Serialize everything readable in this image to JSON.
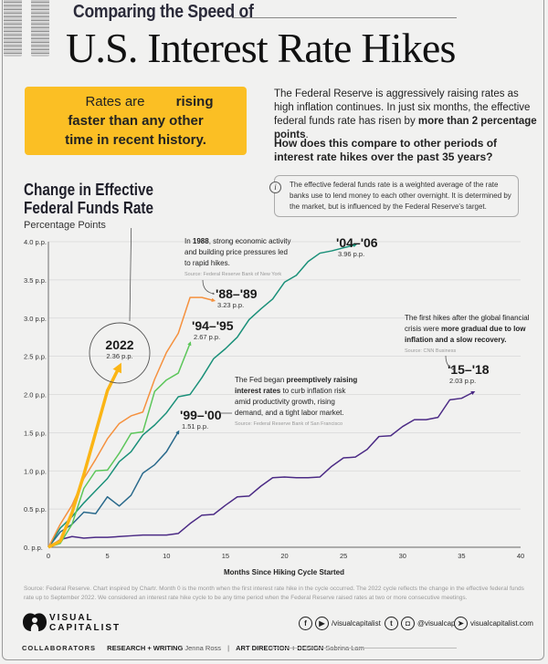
{
  "header": {
    "kicker": "Comparing the Speed of",
    "title": "U.S. Interest Rate Hikes"
  },
  "callout": {
    "text_plain": "Rates are ",
    "text_bold": "rising faster than any other time in recent history."
  },
  "intro": {
    "text_plain": "The Federal Reserve is aggressively raising rates as high inflation continues. In just six months, the effective federal funds rate has risen by ",
    "text_bold": "more than 2 percentage points",
    "text_end": ".",
    "question": "How does this compare to other periods of interest rate hikes over the past 35 years?"
  },
  "info": {
    "icon": "info-icon",
    "text": "The effective federal funds rate is a weighted average of the rate banks use to lend money to each other overnight. It is determined by the market, but is influenced by the Federal Reserve's target."
  },
  "chart_title": {
    "line1": "Change in Effective",
    "line2": "Federal Funds Rate",
    "unit": "Percentage Points"
  },
  "annotations": {
    "a1988": {
      "pre": "In ",
      "bold": "1988",
      "post1": ", strong economic activity",
      "line2": "and building price pressures led",
      "line3": "to rapid hikes.",
      "source": "Source: Federal Reserve Bank of New York"
    },
    "a1999": {
      "pre": "The Fed began ",
      "bold1": "preemptively raising",
      "bold2": "interest rates",
      "post2": " to curb inflation risk",
      "line3": "amid productivity growth, rising",
      "line4": "demand, and a tight labor market.",
      "source": "Source: Federal Reserve Bank of San Francisco"
    },
    "a2015": {
      "line1": "The first hikes after the global financial",
      "pre2": "crisis were ",
      "bold2": "more gradual due to low",
      "bold3": "inflation and a slow recovery.",
      "source": "Source: CNN Business"
    }
  },
  "chart_data": {
    "type": "line",
    "title": "Change in Effective Federal Funds Rate",
    "xlabel": "Months Since Hiking Cycle Started",
    "ylabel": "Percentage Points",
    "xlim": [
      0,
      40
    ],
    "ylim": [
      0,
      4.0
    ],
    "x_ticks": [
      "0",
      "5",
      "10",
      "15",
      "20",
      "25",
      "30",
      "35",
      "40"
    ],
    "y_ticks": [
      "0. p.p.",
      "0.5 p.p.",
      "1.0 p.p.",
      "1.5 p.p.",
      "2.0 p.p.",
      "2.5 p.p.",
      "3.0 p.p.",
      "3.5 p.p.",
      "4.0 p.p."
    ],
    "grid": true,
    "series": [
      {
        "name": "2022",
        "label": "2022",
        "final_label": "2.36 p.p.",
        "color": "#fbb515",
        "x": [
          0,
          1,
          2,
          3,
          4,
          5,
          6
        ],
        "y": [
          0,
          0.08,
          0.45,
          0.95,
          1.5,
          2.05,
          2.36
        ]
      },
      {
        "name": "'88-'89",
        "label": "'88–'89",
        "final_label": "3.23 p.p.",
        "color": "#f5913e",
        "x": [
          0,
          1,
          2,
          3,
          4,
          5,
          6,
          7,
          8,
          9,
          10,
          11,
          12,
          13,
          14
        ],
        "y": [
          0,
          0.3,
          0.55,
          0.9,
          1.15,
          1.42,
          1.62,
          1.72,
          1.77,
          2.2,
          2.55,
          2.8,
          3.27,
          3.27,
          3.23
        ]
      },
      {
        "name": "'94-'95",
        "label": "'94–'95",
        "final_label": "2.67 p.p.",
        "color": "#5cc65a",
        "x": [
          0,
          1,
          2,
          3,
          4,
          5,
          6,
          7,
          8,
          9,
          10,
          11,
          12
        ],
        "y": [
          0,
          0.05,
          0.3,
          0.77,
          1.0,
          1.01,
          1.23,
          1.49,
          1.51,
          2.04,
          2.19,
          2.28,
          2.67
        ]
      },
      {
        "name": "'04-'06",
        "label": "'04–'06",
        "final_label": "3.96 p.p.",
        "color": "#1a9079",
        "x": [
          0,
          1,
          2,
          3,
          4,
          5,
          6,
          7,
          8,
          9,
          10,
          11,
          12,
          13,
          14,
          15,
          16,
          17,
          18,
          19,
          20,
          21,
          22,
          23,
          24,
          25,
          26
        ],
        "y": [
          0,
          0.25,
          0.4,
          0.58,
          0.74,
          0.9,
          1.12,
          1.25,
          1.47,
          1.6,
          1.76,
          1.97,
          2.0,
          2.22,
          2.47,
          2.6,
          2.75,
          2.98,
          3.12,
          3.25,
          3.47,
          3.56,
          3.74,
          3.85,
          3.88,
          3.92,
          3.96
        ]
      },
      {
        "name": "'99-'00",
        "label": "'99–'00",
        "final_label": "1.51 p.p.",
        "color": "#2a6a8c",
        "x": [
          0,
          1,
          2,
          3,
          4,
          5,
          6,
          7,
          8,
          9,
          10,
          11
        ],
        "y": [
          0,
          0.2,
          0.3,
          0.46,
          0.44,
          0.66,
          0.54,
          0.68,
          0.97,
          1.08,
          1.25,
          1.51
        ]
      },
      {
        "name": "'15-'18",
        "label": "'15–'18",
        "final_label": "2.03 p.p.",
        "color": "#4b2a85",
        "x": [
          0,
          1,
          2,
          3,
          4,
          5,
          6,
          7,
          8,
          9,
          10,
          11,
          12,
          13,
          14,
          15,
          16,
          17,
          18,
          19,
          20,
          21,
          22,
          23,
          24,
          25,
          26,
          27,
          28,
          29,
          30,
          31,
          32,
          33,
          34,
          35,
          36
        ],
        "y": [
          0,
          0.1,
          0.14,
          0.12,
          0.13,
          0.13,
          0.14,
          0.15,
          0.16,
          0.16,
          0.16,
          0.18,
          0.31,
          0.42,
          0.43,
          0.55,
          0.66,
          0.67,
          0.8,
          0.91,
          0.92,
          0.91,
          0.91,
          0.92,
          1.06,
          1.17,
          1.18,
          1.28,
          1.45,
          1.46,
          1.58,
          1.67,
          1.67,
          1.7,
          1.93,
          1.95,
          2.03
        ]
      }
    ]
  },
  "footer": {
    "source": "Source: Federal Reserve. Chart inspired by Chartr. Month 0 is the month when the first interest rate hike in the cycle occurred. The 2022 cycle reflects the change in the effective federal funds rate up to September 2022. We considered an interest rate hike cycle to be any time period when the Federal Reserve raised rates at two or more consecutive meetings.",
    "logo_line1": "VISUAL",
    "logo_line2": "CAPITALIST",
    "social1": "/visualcapitalist",
    "social2": "@visualcap",
    "website": "visualcapitalist.com",
    "collaborators_label": "COLLABORATORS",
    "research_label": "RESEARCH + WRITING",
    "research_name": "Jenna Ross",
    "separator": "|",
    "design_label": "ART DIRECTION + DESIGN",
    "design_name": "Sabrina Lam"
  }
}
